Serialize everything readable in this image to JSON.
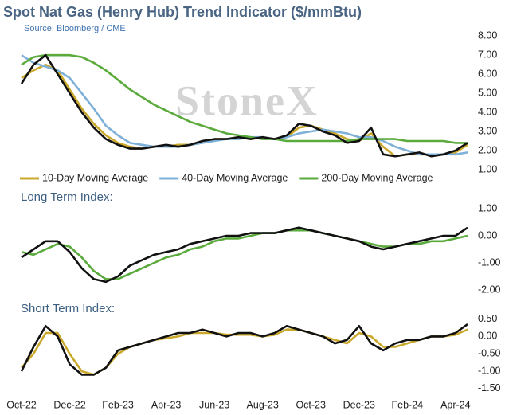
{
  "chart_data": [
    {
      "type": "line",
      "title": "Spot Nat Gas (Henry Hub) Trend Indicator ($/mmBtu)",
      "subtitle": "Source: Bloomberg / CME",
      "watermark": "StoneX",
      "x": [
        0,
        0.5,
        1,
        1.5,
        2,
        2.5,
        3,
        3.5,
        4,
        4.5,
        5,
        5.5,
        6,
        6.5,
        7,
        7.5,
        8,
        8.5,
        9,
        9.5,
        10,
        10.5,
        11,
        11.5,
        12,
        12.5,
        13,
        13.5,
        14,
        14.5,
        15,
        15.5,
        16,
        16.5,
        17,
        17.5,
        18,
        18.5
      ],
      "xlim": [
        0,
        18.6
      ],
      "ylim": [
        0.9,
        8.2
      ],
      "yticks": [
        {
          "value": 8,
          "label": "8.00"
        },
        {
          "value": 7,
          "label": "7.00"
        },
        {
          "value": 6,
          "label": "6.00"
        },
        {
          "value": 5,
          "label": "5.00"
        },
        {
          "value": 4,
          "label": "4.00"
        },
        {
          "value": 3,
          "label": "3.00"
        },
        {
          "value": 2,
          "label": "2.00"
        },
        {
          "value": 1,
          "label": "1.00"
        }
      ],
      "series": [
        {
          "name": "10-Day Moving Average",
          "color": "#c9a82c",
          "values": [
            5.8,
            6.2,
            6.5,
            6.2,
            5.2,
            4.2,
            3.4,
            2.8,
            2.4,
            2.2,
            2.1,
            2.2,
            2.2,
            2.3,
            2.3,
            2.4,
            2.6,
            2.6,
            2.7,
            2.6,
            2.7,
            2.6,
            2.7,
            3.2,
            3.3,
            3.1,
            2.9,
            2.6,
            2.5,
            2.9,
            2.2,
            1.7,
            1.8,
            1.8,
            1.8,
            1.8,
            1.9,
            2.3
          ]
        },
        {
          "name": "40-Day Moving Average",
          "color": "#7fb0d8",
          "values": [
            7.0,
            6.6,
            6.4,
            6.2,
            5.8,
            5.0,
            4.2,
            3.3,
            2.8,
            2.4,
            2.3,
            2.2,
            2.2,
            2.2,
            2.3,
            2.4,
            2.5,
            2.6,
            2.6,
            2.7,
            2.7,
            2.6,
            2.7,
            2.9,
            3.0,
            3.1,
            3.0,
            2.9,
            2.7,
            2.7,
            2.5,
            2.2,
            2.0,
            1.8,
            1.8,
            1.8,
            1.8,
            1.9
          ]
        },
        {
          "name": "200-Day Moving Average",
          "color": "#5aaa3c",
          "values": [
            6.5,
            6.9,
            7.0,
            7.0,
            7.0,
            6.9,
            6.6,
            6.2,
            5.7,
            5.2,
            4.8,
            4.4,
            4.1,
            3.8,
            3.5,
            3.3,
            3.1,
            2.9,
            2.8,
            2.7,
            2.6,
            2.6,
            2.5,
            2.5,
            2.5,
            2.5,
            2.5,
            2.5,
            2.6,
            2.6,
            2.6,
            2.6,
            2.5,
            2.5,
            2.5,
            2.5,
            2.4,
            2.4
          ]
        },
        {
          "color": "#111111",
          "values": [
            5.5,
            6.5,
            7.0,
            6.0,
            5.0,
            4.0,
            3.2,
            2.6,
            2.3,
            2.1,
            2.1,
            2.2,
            2.3,
            2.2,
            2.3,
            2.5,
            2.6,
            2.6,
            2.7,
            2.6,
            2.7,
            2.6,
            2.8,
            3.4,
            3.3,
            3.0,
            2.8,
            2.4,
            2.5,
            3.2,
            1.8,
            1.7,
            1.8,
            1.9,
            1.7,
            1.8,
            2.0,
            2.4
          ]
        }
      ]
    },
    {
      "type": "line",
      "title": "Long Term Index:",
      "x": [
        0,
        0.5,
        1,
        1.5,
        2,
        2.5,
        3,
        3.5,
        4,
        4.5,
        5,
        5.5,
        6,
        6.5,
        7,
        7.5,
        8,
        8.5,
        9,
        9.5,
        10,
        10.5,
        11,
        11.5,
        12,
        12.5,
        13,
        13.5,
        14,
        14.5,
        15,
        15.5,
        16,
        16.5,
        17,
        17.5,
        18,
        18.5
      ],
      "xlim": [
        0,
        18.6
      ],
      "ylim": [
        -2.1,
        1.1
      ],
      "yticks": [
        {
          "value": 1,
          "label": "1.00"
        },
        {
          "value": 0,
          "label": "0.00"
        },
        {
          "value": -1,
          "label": "-1.00"
        },
        {
          "value": -2,
          "label": "-2.00"
        }
      ],
      "series": [
        {
          "color": "#5aaa3c",
          "values": [
            -0.6,
            -0.7,
            -0.5,
            -0.3,
            -0.4,
            -0.8,
            -1.3,
            -1.6,
            -1.6,
            -1.4,
            -1.2,
            -1.0,
            -0.8,
            -0.7,
            -0.5,
            -0.4,
            -0.2,
            -0.1,
            -0.1,
            0.0,
            0.1,
            0.1,
            0.2,
            0.2,
            0.2,
            0.1,
            0.0,
            -0.1,
            -0.2,
            -0.3,
            -0.4,
            -0.4,
            -0.3,
            -0.3,
            -0.2,
            -0.2,
            -0.1,
            0.0
          ]
        },
        {
          "color": "#111111",
          "values": [
            -0.8,
            -0.5,
            -0.2,
            -0.2,
            -0.6,
            -1.2,
            -1.6,
            -1.7,
            -1.5,
            -1.1,
            -0.9,
            -0.7,
            -0.6,
            -0.5,
            -0.3,
            -0.2,
            -0.1,
            0.0,
            0.0,
            0.1,
            0.1,
            0.1,
            0.2,
            0.3,
            0.2,
            0.1,
            0.0,
            -0.1,
            -0.2,
            -0.4,
            -0.5,
            -0.4,
            -0.3,
            -0.2,
            -0.1,
            0.0,
            0.0,
            0.3
          ]
        }
      ]
    },
    {
      "type": "line",
      "title": "Short Term Index:",
      "x": [
        0,
        0.5,
        1,
        1.5,
        2,
        2.5,
        3,
        3.5,
        4,
        4.5,
        5,
        5.5,
        6,
        6.5,
        7,
        7.5,
        8,
        8.5,
        9,
        9.5,
        10,
        10.5,
        11,
        11.5,
        12,
        12.5,
        13,
        13.5,
        14,
        14.5,
        15,
        15.5,
        16,
        16.5,
        17,
        17.5,
        18,
        18.5
      ],
      "xlim": [
        0,
        18.6
      ],
      "xticks": [
        {
          "value": 0,
          "label": "Oct-22"
        },
        {
          "value": 2,
          "label": "Dec-22"
        },
        {
          "value": 4,
          "label": "Feb-23"
        },
        {
          "value": 6,
          "label": "Apr-23"
        },
        {
          "value": 8,
          "label": "Jun-23"
        },
        {
          "value": 10,
          "label": "Aug-23"
        },
        {
          "value": 12,
          "label": "Oct-23"
        },
        {
          "value": 14,
          "label": "Dec-23"
        },
        {
          "value": 16,
          "label": "Feb-24"
        },
        {
          "value": 18,
          "label": "Apr-24"
        }
      ],
      "ylim": [
        -1.55,
        0.6
      ],
      "yticks": [
        {
          "value": 0.5,
          "label": "0.50"
        },
        {
          "value": 0,
          "label": "0.00"
        },
        {
          "value": -0.5,
          "label": "-0.50"
        },
        {
          "value": -1,
          "label": "-1.00"
        },
        {
          "value": -1.5,
          "label": "-1.50"
        }
      ],
      "series": [
        {
          "color": "#c9a82c",
          "values": [
            -0.9,
            -0.5,
            0.1,
            0.1,
            -0.5,
            -1.0,
            -1.1,
            -0.9,
            -0.5,
            -0.3,
            -0.2,
            -0.1,
            -0.05,
            0.0,
            0.1,
            0.1,
            0.1,
            0.05,
            0.05,
            0.05,
            0.0,
            0.05,
            0.2,
            0.2,
            0.1,
            0.0,
            -0.1,
            -0.2,
            0.1,
            0.0,
            -0.3,
            -0.3,
            -0.2,
            -0.1,
            0.0,
            0.0,
            0.05,
            0.2
          ]
        },
        {
          "color": "#111111",
          "values": [
            -1.0,
            -0.3,
            0.3,
            0.0,
            -0.8,
            -1.1,
            -1.1,
            -0.9,
            -0.4,
            -0.3,
            -0.2,
            -0.1,
            0.0,
            0.1,
            0.1,
            0.2,
            0.1,
            0.0,
            0.1,
            0.1,
            0.0,
            0.1,
            0.3,
            0.2,
            0.1,
            0.0,
            -0.2,
            -0.1,
            0.3,
            -0.2,
            -0.4,
            -0.2,
            -0.1,
            -0.1,
            0.0,
            0.0,
            0.1,
            0.35
          ]
        }
      ]
    }
  ]
}
